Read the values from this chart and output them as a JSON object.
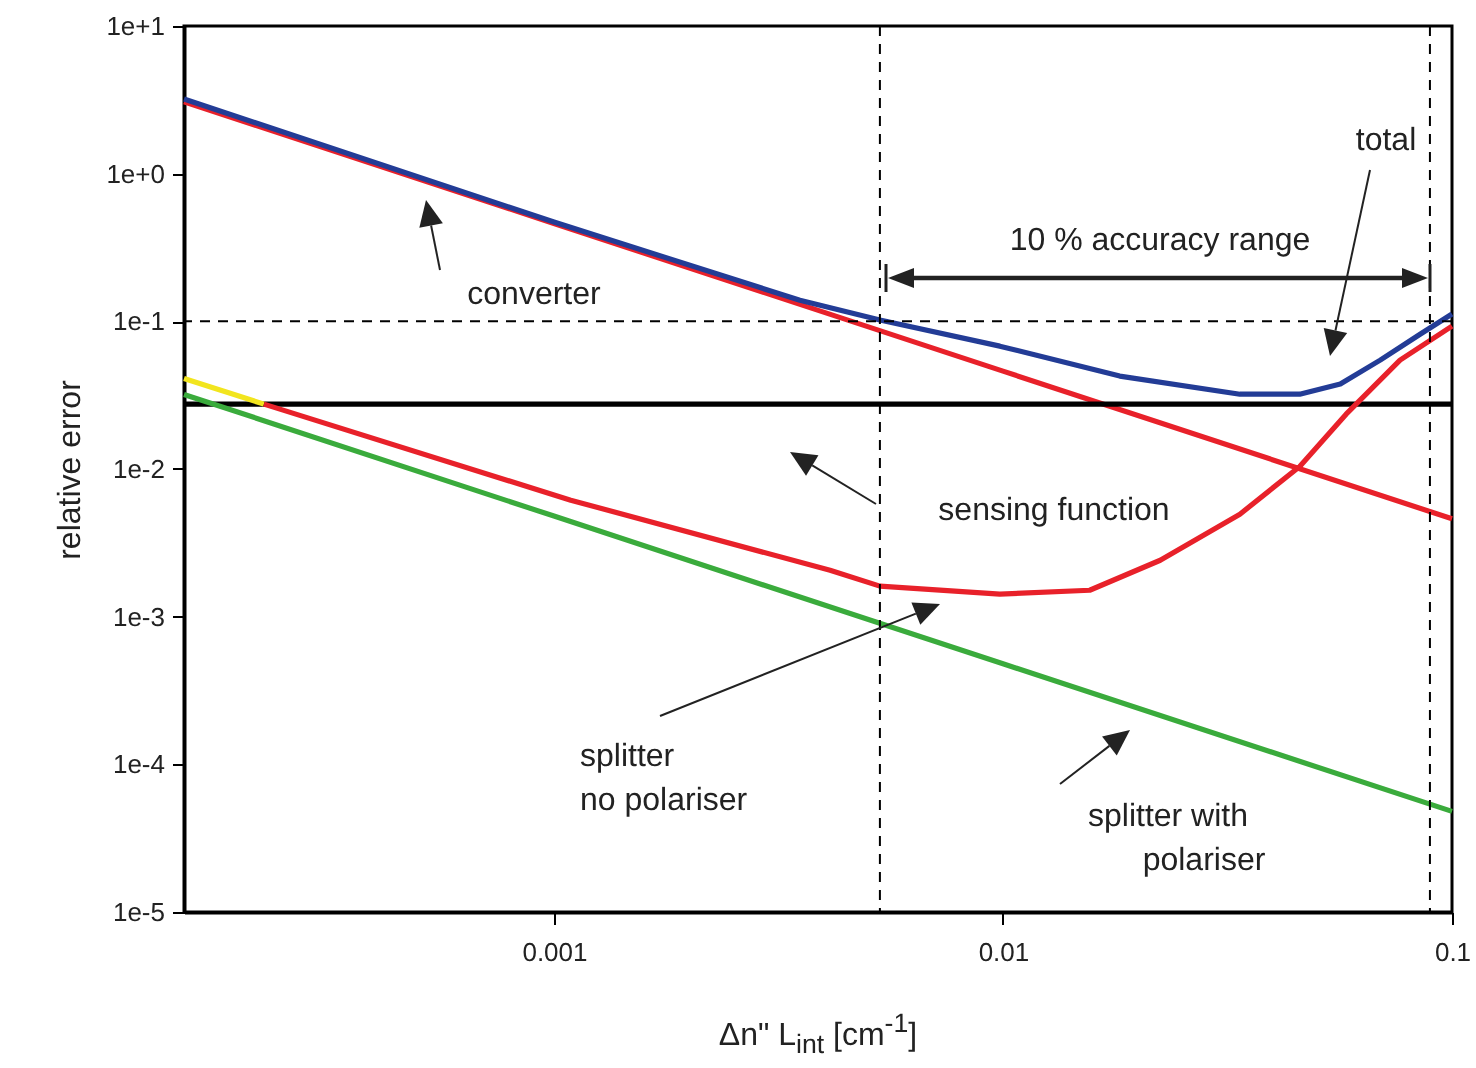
{
  "chart_data": {
    "type": "line",
    "xlabel": "Δn\" L$_{int}$ [cm$^{-1}$]",
    "ylabel": "relative error",
    "log": "xy",
    "grid": false,
    "line_style": "solid",
    "xlim": [
      0.00015,
      0.1
    ],
    "xticks": [
      0.001,
      0.01,
      0.1
    ],
    "ylim": [
      1e-05,
      10
    ],
    "yticks": [
      {
        "value": 10,
        "label": "1e+1"
      },
      {
        "value": 1,
        "label": "1e+0"
      },
      {
        "value": 0.1,
        "label": "1e-1"
      },
      {
        "value": 0.01,
        "label": "1e-2"
      },
      {
        "value": 0.001,
        "label": "1e-3"
      },
      {
        "value": 0.0001,
        "label": "1e-4"
      },
      {
        "value": 1e-05,
        "label": "1e-5"
      }
    ],
    "series": [
      {
        "color": "#e8212a",
        "x": [
          0.00015,
          0.001,
          0.01,
          0.1
        ],
        "values": [
          3.07,
          0.46,
          0.046,
          0.0046
        ]
      },
      {
        "color": "#000000",
        "x": [
          0.00015,
          0.1
        ],
        "values": [
          0.0275,
          0.0275
        ]
      },
      {
        "color": "#f2e51e",
        "x": [
          0.00015,
          0.000226
        ],
        "values": [
          0.041,
          0.0275
        ]
      },
      {
        "color": "#e8212a",
        "x": [
          0.000226,
          0.00109,
          0.00412,
          0.00532,
          0.00984,
          0.0156,
          0.0224,
          0.0337,
          0.0458,
          0.0581,
          0.0766,
          0.1
        ],
        "values": [
          0.0275,
          0.00615,
          0.00206,
          0.00161,
          0.00142,
          0.00151,
          0.00241,
          0.00494,
          0.0104,
          0.0235,
          0.0546,
          0.0927
        ]
      },
      {
        "color": "#3aab3c",
        "x": [
          0.00015,
          0.001,
          0.01,
          0.1
        ],
        "values": [
          0.032,
          0.0048,
          0.00048,
          4.8e-05
        ]
      },
      {
        "color": "#233c96",
        "x": [
          0.00015,
          0.001,
          0.00353,
          0.00532,
          0.00984,
          0.0182,
          0.0337,
          0.0458,
          0.0564,
          0.0692,
          0.0849,
          0.1
        ],
        "values": [
          3.2,
          0.47,
          0.139,
          0.102,
          0.0679,
          0.0426,
          0.0321,
          0.0321,
          0.0376,
          0.0546,
          0.0818,
          0.112
        ]
      }
    ],
    "ref_lines": [
      {
        "axis": "y",
        "value": 0.1,
        "color": "#000000",
        "line_style": "dashed"
      },
      {
        "axis": "x",
        "value": 0.00532,
        "color": "#000000",
        "line_style": "dashed"
      },
      {
        "axis": "x",
        "value": 0.0893,
        "color": "#000000",
        "line_style": "dashed"
      }
    ],
    "annotations": [
      "converter",
      "sensing function",
      "total",
      "splitter\nno polariser",
      "splitter with\npolariser",
      "10 % accuracy range"
    ]
  }
}
